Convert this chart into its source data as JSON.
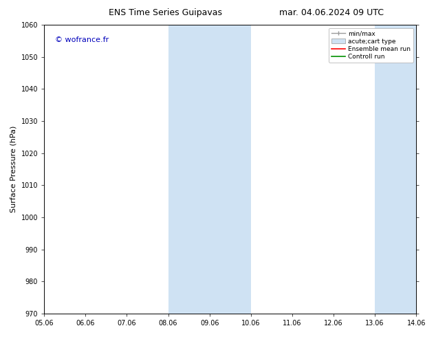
{
  "title_left": "ENS Time Series Guipavas",
  "title_right": "mar. 04.06.2024 09 UTC",
  "ylabel": "Surface Pressure (hPa)",
  "watermark": "© wofrance.fr",
  "watermark_color": "#0000bb",
  "ylim": [
    970,
    1060
  ],
  "yticks": [
    970,
    980,
    990,
    1000,
    1010,
    1020,
    1030,
    1040,
    1050,
    1060
  ],
  "background_color": "#ffffff",
  "plot_bg_color": "#ffffff",
  "shaded_regions": [
    {
      "x0_day": 8,
      "x1_day": 10,
      "color": "#cfe2f3"
    },
    {
      "x0_day": 13,
      "x1_day": 14,
      "color": "#cfe2f3"
    }
  ],
  "x_tick_labels": [
    "05.06",
    "06.06",
    "07.06",
    "08.06",
    "09.06",
    "10.06",
    "11.06",
    "12.06",
    "13.06",
    "14.06"
  ],
  "x_tick_days": [
    5,
    6,
    7,
    8,
    9,
    10,
    11,
    12,
    13,
    14
  ],
  "legend_labels": [
    "min/max",
    "acute;cart type",
    "Ensemble mean run",
    "Controll run"
  ],
  "legend_colors": [
    "#999999",
    "#cfe2f3",
    "#ff0000",
    "#009000"
  ],
  "title_fontsize": 9,
  "tick_fontsize": 7,
  "ylabel_fontsize": 8,
  "watermark_fontsize": 8,
  "legend_fontsize": 6.5
}
